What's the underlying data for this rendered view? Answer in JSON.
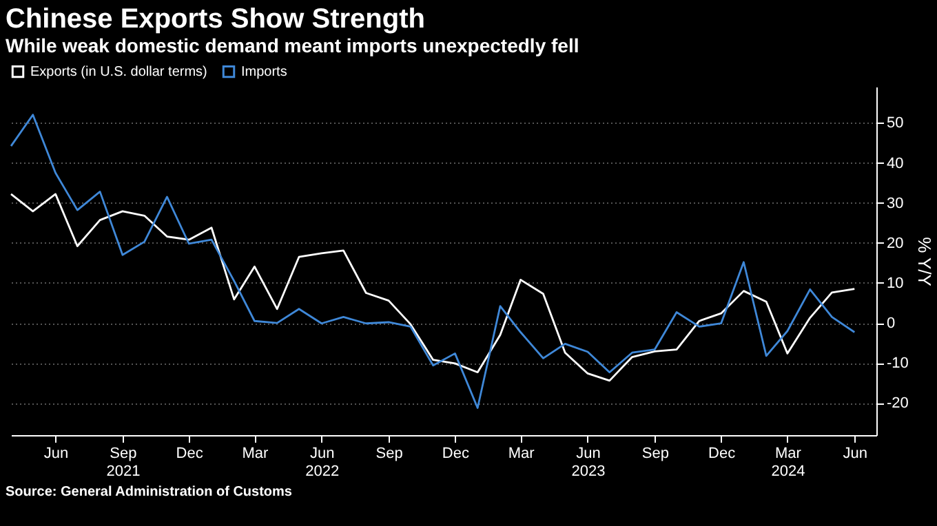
{
  "chart_data": {
    "type": "line",
    "title": "Chinese Exports Show Strength",
    "subtitle": "While weak domestic demand meant imports unexpectedly fell",
    "ylabel": "% Y/Y",
    "x": [
      "2021-04",
      "2021-05",
      "2021-06",
      "2021-07",
      "2021-08",
      "2021-09",
      "2021-10",
      "2021-11",
      "2021-12",
      "2022-01",
      "2022-02",
      "2022-03",
      "2022-04",
      "2022-05",
      "2022-06",
      "2022-07",
      "2022-08",
      "2022-09",
      "2022-10",
      "2022-11",
      "2022-12",
      "2023-01",
      "2023-02",
      "2023-03",
      "2023-04",
      "2023-05",
      "2023-06",
      "2023-07",
      "2023-08",
      "2023-09",
      "2023-10",
      "2023-11",
      "2023-12",
      "2024-01",
      "2024-02",
      "2024-03",
      "2024-04",
      "2024-05",
      "2024-06"
    ],
    "series": [
      {
        "name": "Exports (in U.S. dollar terms)",
        "color": "#ffffff",
        "values": [
          32.2,
          27.9,
          32.2,
          19.2,
          25.7,
          27.9,
          26.8,
          21.6,
          20.8,
          23.8,
          5.9,
          14.1,
          3.5,
          16.5,
          17.4,
          18.1,
          7.5,
          5.6,
          -0.3,
          -9.2,
          -10.1,
          -12.3,
          -3.0,
          10.8,
          7.3,
          -7.4,
          -12.6,
          -14.4,
          -8.5,
          -7.1,
          -6.6,
          0.5,
          2.4,
          8.0,
          5.3,
          -7.6,
          1.3,
          7.6,
          8.5
        ]
      },
      {
        "name": "Imports",
        "color": "#3f88d8",
        "values": [
          44.2,
          52.0,
          37.5,
          28.2,
          32.8,
          17.0,
          20.3,
          31.5,
          19.8,
          20.8,
          10.5,
          0.5,
          0.0,
          3.5,
          -0.1,
          1.5,
          -0.1,
          0.2,
          -0.9,
          -10.6,
          -7.6,
          -21.2,
          4.2,
          -2.3,
          -8.8,
          -5.2,
          -7.2,
          -12.3,
          -7.4,
          -6.6,
          2.7,
          -0.9,
          -0.1,
          15.2,
          -8.2,
          -2.0,
          8.4,
          1.5,
          -2.3
        ]
      }
    ],
    "xlim": [
      "2021-04-01",
      "2024-07-01"
    ],
    "xticks": [
      {
        "value": "2021-06-01",
        "label": "Jun"
      },
      {
        "value": "2021-09-01",
        "label": "Sep\n2021"
      },
      {
        "value": "2021-12-01",
        "label": "Dec"
      },
      {
        "value": "2022-03-01",
        "label": "Mar"
      },
      {
        "value": "2022-06-01",
        "label": "Jun\n2022"
      },
      {
        "value": "2022-09-01",
        "label": "Sep"
      },
      {
        "value": "2022-12-01",
        "label": "Dec"
      },
      {
        "value": "2023-03-01",
        "label": "Mar"
      },
      {
        "value": "2023-06-01",
        "label": "Jun\n2023"
      },
      {
        "value": "2023-09-01",
        "label": "Sep"
      },
      {
        "value": "2023-12-01",
        "label": "Dec"
      },
      {
        "value": "2024-03-01",
        "label": "Mar\n2024"
      },
      {
        "value": "2024-06-01",
        "label": "Jun"
      }
    ],
    "ylim": [
      -28,
      59
    ],
    "yticks": [
      -20,
      -10,
      0,
      10,
      20,
      30,
      40,
      50
    ],
    "grid": "y",
    "legend": "top left",
    "line_style": "solid",
    "marker": "none",
    "annotations": [
      "Source: General Administration of Customs"
    ]
  }
}
